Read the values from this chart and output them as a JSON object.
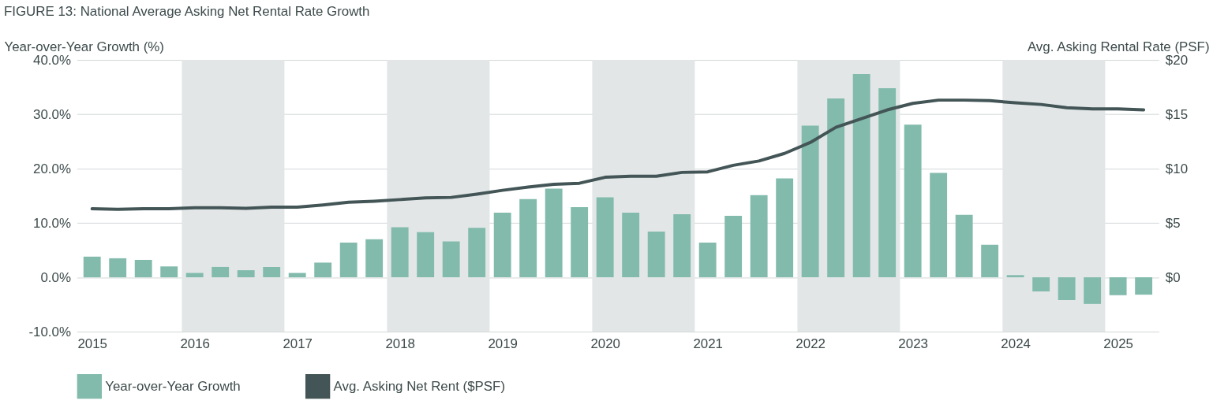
{
  "chart_data": {
    "type": "bar",
    "title": "FIGURE 13: National Average Asking Net Rental Rate Growth",
    "ylabel": "Year-over-Year Growth (%)",
    "y2label": "Avg. Asking Rental Rate (PSF)",
    "x": [
      2015,
      2015.25,
      2015.5,
      2015.75,
      2016,
      2016.25,
      2016.5,
      2016.75,
      2017,
      2017.25,
      2017.5,
      2017.75,
      2018,
      2018.25,
      2018.5,
      2018.75,
      2019,
      2019.25,
      2019.5,
      2019.75,
      2020,
      2020.25,
      2020.5,
      2020.75,
      2021,
      2021.25,
      2021.5,
      2021.75,
      2022,
      2022.25,
      2022.5,
      2022.75,
      2023,
      2023.25,
      2023.5,
      2023.75,
      2024,
      2024.25,
      2024.5,
      2024.75,
      2025,
      2025.25
    ],
    "xlim": [
      2014.89,
      2025.36
    ],
    "xticks": [
      2015,
      2016,
      2017,
      2018,
      2019,
      2020,
      2021,
      2022,
      2023,
      2024,
      2025
    ],
    "ylim": [
      -10,
      40
    ],
    "yticks": [
      {
        "value": -10,
        "label": "-10.0%"
      },
      {
        "value": 0,
        "label": "0.0%"
      },
      {
        "value": 10,
        "label": "10.0%"
      },
      {
        "value": 20,
        "label": "20.0%"
      },
      {
        "value": 30,
        "label": "30.0%"
      },
      {
        "value": 40,
        "label": "40.0%"
      }
    ],
    "y2lim": [
      -5,
      20
    ],
    "y2ticks": [
      {
        "value": 0,
        "label": "$0"
      },
      {
        "value": 5,
        "label": "$5"
      },
      {
        "value": 10,
        "label": "$10"
      },
      {
        "value": 15,
        "label": "$15"
      },
      {
        "value": 20,
        "label": "$20"
      }
    ],
    "series": [
      {
        "name": "Year-over-Year Growth",
        "color": "#82bbac",
        "values": [
          3.8,
          3.5,
          3.2,
          2.0,
          0.8,
          1.9,
          1.3,
          1.9,
          0.8,
          2.7,
          6.4,
          7.0,
          9.2,
          8.3,
          6.6,
          9.1,
          11.9,
          14.4,
          16.3,
          12.9,
          14.7,
          11.9,
          8.4,
          11.6,
          6.4,
          11.3,
          15.1,
          18.2,
          27.9,
          32.9,
          37.4,
          34.8,
          28.1,
          19.2,
          11.5,
          6.0,
          0.4,
          -2.6,
          -4.2,
          -4.9,
          -3.3,
          -3.2
        ]
      },
      {
        "name": "Avg. Asking Net Rent ($PSF)",
        "type": "line",
        "axis": "y2",
        "color": "#435556",
        "values": [
          6.3,
          6.25,
          6.3,
          6.3,
          6.4,
          6.4,
          6.35,
          6.45,
          6.45,
          6.65,
          6.9,
          7.0,
          7.15,
          7.3,
          7.35,
          7.65,
          8.0,
          8.3,
          8.55,
          8.65,
          9.2,
          9.3,
          9.3,
          9.65,
          9.7,
          10.3,
          10.7,
          11.4,
          12.4,
          13.8,
          14.6,
          15.4,
          16.0,
          16.3,
          16.3,
          16.25,
          16.05,
          15.9,
          15.6,
          15.5,
          15.5,
          15.4
        ]
      }
    ],
    "bands": [
      {
        "axis": "x",
        "from": 2015.875,
        "to": 2016.875,
        "color": "#e2e6e7"
      },
      {
        "axis": "x",
        "from": 2017.875,
        "to": 2018.875,
        "color": "#e2e6e7"
      },
      {
        "axis": "x",
        "from": 2019.875,
        "to": 2020.875,
        "color": "#e2e6e7"
      },
      {
        "axis": "x",
        "from": 2021.875,
        "to": 2022.875,
        "color": "#e2e6e7"
      },
      {
        "axis": "x",
        "from": 2023.875,
        "to": 2024.875,
        "color": "#e2e6e7"
      }
    ],
    "grid": "y",
    "legend": "bottom",
    "line_style": "solid",
    "marker": "none"
  }
}
